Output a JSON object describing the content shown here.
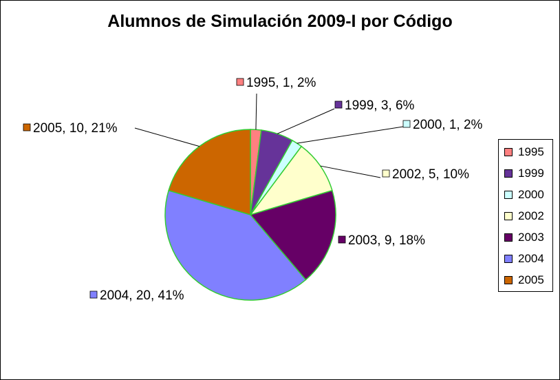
{
  "chart_data": {
    "type": "pie",
    "title": "Alumnos de Simulación 2009-I por Código",
    "slices": [
      {
        "label": "1995",
        "value": 1,
        "percent": 2,
        "color": "#FF8080",
        "data_label": "1995, 1, 2%"
      },
      {
        "label": "1999",
        "value": 3,
        "percent": 6,
        "color": "#663399",
        "data_label": "1999, 3, 6%"
      },
      {
        "label": "2000",
        "value": 1,
        "percent": 2,
        "color": "#CCFFFF",
        "data_label": "2000, 1, 2%"
      },
      {
        "label": "2002",
        "value": 5,
        "percent": 10,
        "color": "#FFFFCC",
        "data_label": "2002, 5, 10%"
      },
      {
        "label": "2003",
        "value": 9,
        "percent": 18,
        "color": "#660066",
        "data_label": "2003, 9, 18%"
      },
      {
        "label": "2004",
        "value": 20,
        "percent": 41,
        "color": "#8080FF",
        "data_label": "2004, 20, 41%"
      },
      {
        "label": "2005",
        "value": 10,
        "percent": 21,
        "color": "#CC6600",
        "data_label": "2005, 10, 21%"
      }
    ],
    "legend": [
      "1995",
      "1999",
      "2000",
      "2002",
      "2003",
      "2004",
      "2005"
    ],
    "legend_position": "right",
    "slice_border_color": "#33CC33"
  }
}
